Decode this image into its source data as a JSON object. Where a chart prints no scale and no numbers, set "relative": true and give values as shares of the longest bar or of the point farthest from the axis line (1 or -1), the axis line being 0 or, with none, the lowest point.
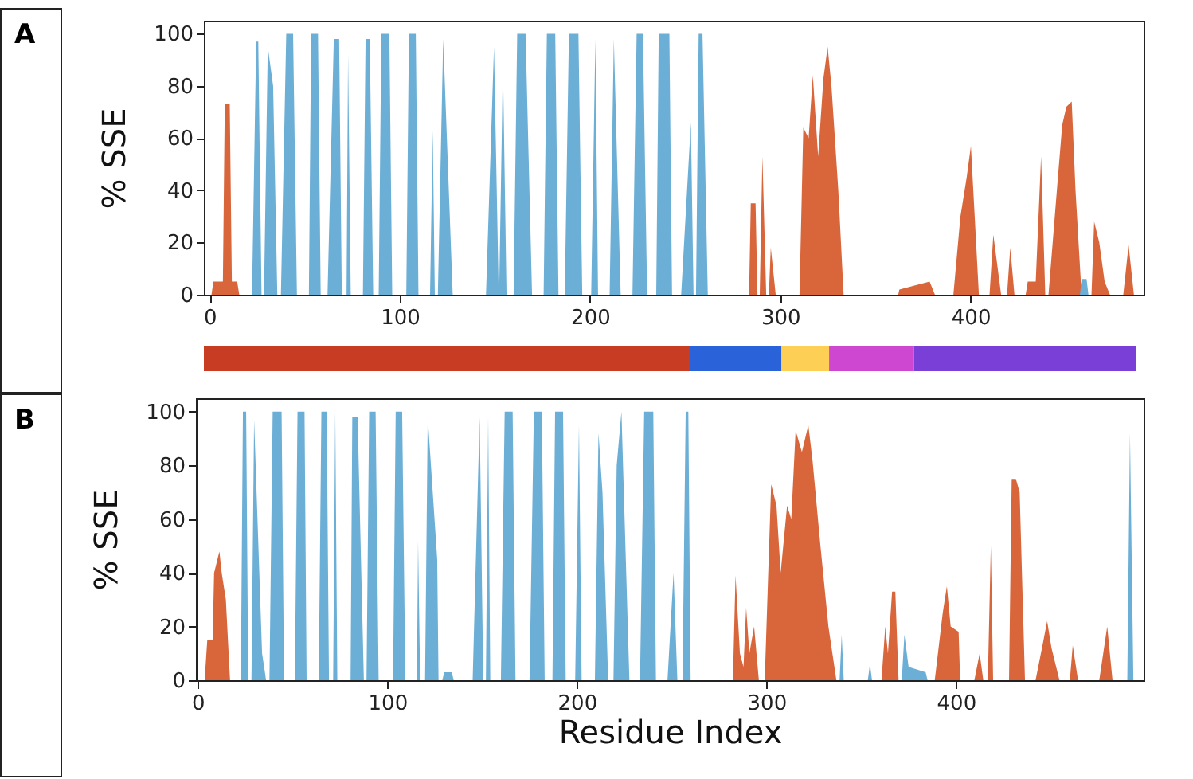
{
  "chart_data": [
    {
      "type": "area",
      "annotations": [
        "A"
      ],
      "ylabel": "% SSE",
      "xlim": [
        -3,
        491
      ],
      "ylim": [
        0,
        105
      ],
      "xticks": [
        0,
        100,
        200,
        300,
        400
      ],
      "yticks": [
        0,
        20,
        40,
        60,
        80,
        100
      ],
      "series": [
        {
          "color": "#d9653b",
          "x": [
            1,
            2,
            7,
            8,
            10.6,
            11.7,
            14.5,
            15.6,
            283.6,
            284.5,
            287,
            288,
            289.2,
            290.6,
            292.6,
            294,
            295,
            297.6,
            310.1,
            312.1,
            314.9,
            317.1,
            319.9,
            322.7,
            324.9,
            326.9,
            330.5,
            333.3,
            362,
            362.6,
            372.9,
            378.5,
            381.3,
            391,
            394.7,
            398,
            400.2,
            402.2,
            404.4,
            410,
            412,
            416.1,
            419.2,
            420.9,
            423.1,
            429,
            430.1,
            434.3,
            437.1,
            439.3,
            441,
            442.1,
            445.4,
            448.2,
            450.4,
            453.2,
            455.2,
            458,
            459,
            463.6,
            465,
            467.7,
            470.5,
            473.3,
            480.3,
            483.1,
            485.9
          ],
          "values": [
            0,
            5,
            5,
            73,
            73,
            5,
            5,
            0,
            0,
            35,
            35,
            0,
            0,
            53,
            0,
            0,
            18,
            0,
            0,
            64,
            60,
            84,
            53,
            83,
            95,
            80,
            40,
            0,
            0,
            2,
            4,
            5,
            0,
            0,
            30,
            45,
            57,
            30,
            0,
            0,
            23,
            0,
            0,
            18,
            0,
            0,
            5,
            5,
            53,
            0,
            0,
            10,
            40,
            65,
            72,
            74,
            40,
            5,
            0,
            0,
            28,
            20,
            5,
            0,
            0,
            19,
            0
          ]
        },
        {
          "color": "#6baed6",
          "x": [
            22.3,
            24.5,
            25.6,
            27.3,
            28.6,
            30.6,
            33.4,
            35.6,
            37.5,
            40.3,
            43.9,
            45.9,
            52.2,
            53.4,
            57,
            58.4,
            62,
            62.5,
            65.3,
            68.1,
            69.5,
            72,
            72.8,
            74.2,
            80.6,
            82,
            84.2,
            86,
            88.9,
            90.3,
            94.5,
            96,
            103.4,
            104.8,
            108.4,
            109.8,
            115.9,
            117.3,
            118.4,
            120,
            122.8,
            127.8,
            145.3,
            149.5,
            152,
            152.2,
            154.2,
            156.1,
            159.8,
            161.7,
            166.1,
            169.5,
            175.6,
            177.3,
            181.7,
            183.4,
            186.7,
            188.9,
            193.9,
            195.9,
            200.6,
            202.8,
            204.2,
            210.3,
            212.5,
            216.1,
            222.3,
            224.5,
            227.8,
            230,
            234.8,
            236.1,
            241.7,
            243.1,
            247.9,
            253,
            254.4,
            255.7,
            257.1,
            259.1,
            261.9,
            457.5,
            458.5,
            461,
            462
          ],
          "values": [
            0,
            97,
            97,
            0,
            0,
            95,
            80,
            0,
            0,
            100,
            100,
            0,
            0,
            100,
            100,
            0,
            0,
            15,
            98,
            98,
            0,
            0,
            92,
            0,
            0,
            98,
            98,
            0,
            0,
            100,
            100,
            0,
            0,
            100,
            100,
            0,
            0,
            63,
            0,
            0,
            98,
            0,
            0,
            95,
            0,
            0,
            88,
            0,
            0,
            100,
            100,
            0,
            0,
            100,
            100,
            0,
            0,
            100,
            100,
            0,
            0,
            98,
            0,
            0,
            98,
            0,
            0,
            100,
            100,
            0,
            0,
            100,
            100,
            0,
            0,
            66,
            0,
            0,
            100,
            100,
            0,
            0,
            6,
            6,
            0
          ]
        }
      ]
    },
    {
      "type": "bar",
      "orientation": "horizontal",
      "stacked": true,
      "relative": true,
      "categories": [
        null
      ],
      "series": [
        {
          "color": "#c83c23",
          "values": [
            0.522
          ]
        },
        {
          "color": "#2962d9",
          "values": [
            0.098
          ]
        },
        {
          "color": "#fdd055",
          "values": [
            0.051
          ]
        },
        {
          "color": "#cd47d0",
          "values": [
            0.091
          ]
        },
        {
          "color": "#7a3fd6",
          "values": [
            0.238
          ]
        }
      ]
    },
    {
      "type": "area",
      "annotations": [
        "B"
      ],
      "ylabel": "% SSE",
      "xlabel": "Residue Index",
      "xlim": [
        -1,
        499
      ],
      "ylim": [
        0,
        105
      ],
      "xticks": [
        0,
        100,
        200,
        300,
        400
      ],
      "yticks": [
        0,
        20,
        40,
        60,
        80,
        100
      ],
      "series": [
        {
          "color": "#d9653b",
          "x": [
            3.6,
            5,
            7.8,
            8.6,
            11.4,
            12.6,
            14.8,
            17,
            282.3,
            283.7,
            286,
            287.9,
            289.3,
            291,
            293.5,
            296,
            299.1,
            302.5,
            305.3,
            307.5,
            310.9,
            313.1,
            315.4,
            318.7,
            322.1,
            324.3,
            328.5,
            332.7,
            336.9,
            360.7,
            362.7,
            364.1,
            366.3,
            368,
            369.7,
            388.8,
            393,
            395.2,
            397.2,
            401.4,
            402.2,
            409.7,
            412.5,
            414.4,
            416.8,
            418.4,
            419.6,
            428,
            429.4,
            431.6,
            433.6,
            436.4,
            442,
            446.2,
            448.1,
            450.4,
            454.6,
            460.1,
            461.6,
            464.4,
            475.6,
            479.8,
            482.6
          ],
          "values": [
            0,
            15,
            15,
            40,
            48,
            40,
            30,
            0,
            0,
            39,
            10,
            5,
            27,
            10,
            20,
            0,
            0,
            73,
            65,
            40,
            65,
            60,
            93,
            85,
            95,
            82,
            50,
            20,
            0,
            0,
            20,
            10,
            33,
            33,
            0,
            0,
            25,
            35,
            20,
            18,
            0,
            0,
            10,
            0,
            0,
            50,
            0,
            0,
            75,
            75,
            70,
            0,
            0,
            15,
            22,
            12,
            0,
            0,
            13,
            0,
            0,
            20,
            0
          ]
        },
        {
          "color": "#6baed6",
          "x": [
            22.7,
            23.8,
            25.5,
            26.6,
            28.3,
            29.7,
            33.9,
            35,
            36,
            37.8,
            39.5,
            44.2,
            45.5,
            51.2,
            52.6,
            56.3,
            57.4,
            63.8,
            65.2,
            68,
            69.2,
            71.4,
            72.5,
            73.6,
            80.6,
            81.5,
            84.3,
            87.6,
            89,
            90.4,
            93.8,
            95.4,
            103,
            104.4,
            107.8,
            109.5,
            115.6,
            116.2,
            117.3,
            119.9,
            121.3,
            126.3,
            127,
            129,
            130,
            134,
            135,
            145,
            148.7,
            150.6,
            152,
            153.2,
            154.3,
            159.9,
            161.9,
            166.1,
            167.6,
            175,
            177.3,
            181.5,
            183,
            187.1,
            188.5,
            192.7,
            194.1,
            199.1,
            201.1,
            202.5,
            209.5,
            211.4,
            213.5,
            216.5,
            219.3,
            221,
            223.5,
            227.7,
            233.3,
            235.5,
            240.3,
            241.7,
            247.8,
            251,
            253,
            255.7,
            257.4,
            258.8,
            260,
            338.6,
            339.7,
            340.8,
            353.5,
            354.6,
            355.7,
            371.4,
            372.8,
            375,
            384,
            385,
            490.4,
            491.8,
            493.6
          ],
          "values": [
            0,
            100,
            100,
            0,
            0,
            97,
            10,
            5,
            0,
            0,
            100,
            100,
            0,
            0,
            100,
            100,
            0,
            0,
            100,
            100,
            0,
            0,
            100,
            0,
            0,
            98,
            98,
            0,
            0,
            100,
            100,
            0,
            0,
            100,
            100,
            0,
            0,
            52,
            0,
            0,
            98,
            45,
            0,
            0,
            3,
            3,
            0,
            0,
            98,
            0,
            0,
            98,
            0,
            0,
            100,
            100,
            0,
            0,
            100,
            100,
            0,
            0,
            100,
            100,
            0,
            0,
            95,
            0,
            0,
            92,
            70,
            0,
            0,
            80,
            100,
            0,
            0,
            100,
            100,
            0,
            0,
            40,
            0,
            0,
            100,
            100,
            0,
            0,
            17,
            0,
            0,
            6,
            0,
            0,
            17,
            5,
            3,
            0,
            0,
            92,
            0
          ]
        }
      ]
    }
  ]
}
